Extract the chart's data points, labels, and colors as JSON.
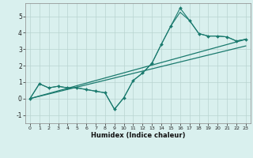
{
  "xlabel": "Humidex (Indice chaleur)",
  "xlim": [
    -0.5,
    23.5
  ],
  "ylim": [
    -1.5,
    5.8
  ],
  "xticks": [
    0,
    1,
    2,
    3,
    4,
    5,
    6,
    7,
    8,
    9,
    10,
    11,
    12,
    13,
    14,
    15,
    16,
    17,
    18,
    19,
    20,
    21,
    22,
    23
  ],
  "yticks": [
    -1,
    0,
    1,
    2,
    3,
    4,
    5
  ],
  "bg_color": "#d9f0ee",
  "grid_color": "#b8d4d0",
  "line_color": "#1a7a6e",
  "main_x": [
    0,
    1,
    2,
    3,
    4,
    5,
    6,
    7,
    8,
    9,
    10,
    11,
    12,
    13,
    14,
    15,
    16,
    17,
    18,
    19,
    20,
    21,
    22,
    23
  ],
  "main_y": [
    0.0,
    0.9,
    0.65,
    0.75,
    0.65,
    0.65,
    0.55,
    0.45,
    0.35,
    -0.65,
    0.05,
    1.1,
    1.55,
    2.15,
    3.3,
    4.4,
    5.5,
    4.75,
    3.95,
    3.8,
    3.8,
    3.75,
    3.5,
    3.6
  ],
  "line2_x": [
    0,
    1,
    2,
    3,
    4,
    5,
    6,
    7,
    8,
    9,
    10,
    11,
    12,
    13,
    14,
    15,
    16,
    17,
    18,
    19,
    20,
    21,
    22,
    23
  ],
  "line2_y": [
    0.0,
    0.9,
    0.65,
    0.75,
    0.65,
    0.65,
    0.55,
    0.45,
    0.35,
    -0.65,
    0.05,
    1.1,
    1.55,
    2.15,
    3.3,
    4.4,
    5.25,
    4.75,
    3.95,
    3.8,
    3.8,
    3.75,
    3.5,
    3.6
  ],
  "trend1_x": [
    0,
    23
  ],
  "trend1_y": [
    0.0,
    3.6
  ],
  "trend2_x": [
    0,
    23
  ],
  "trend2_y": [
    0.0,
    3.2
  ]
}
